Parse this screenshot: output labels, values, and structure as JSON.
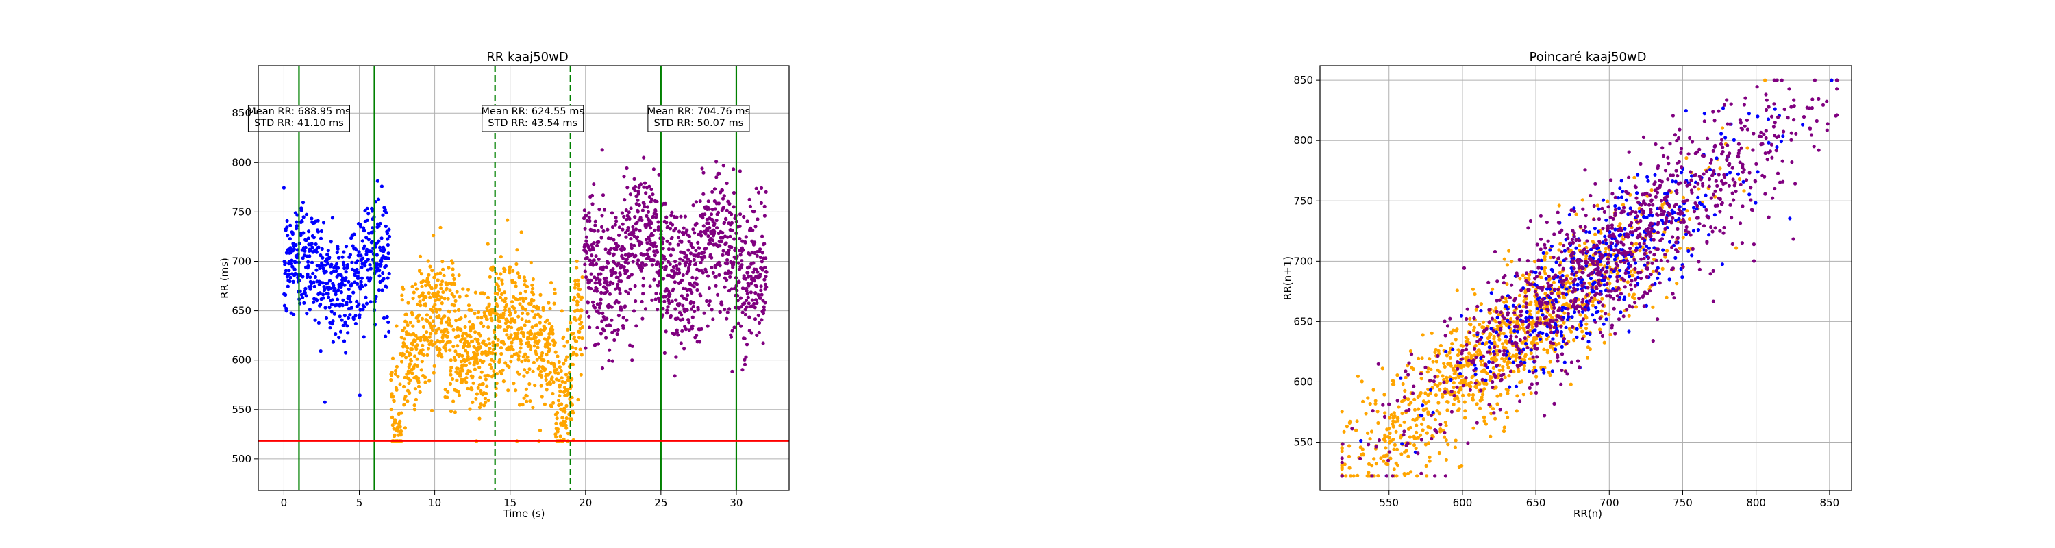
{
  "figure_titles": {
    "left": "RR kaaj50wD",
    "right": "Poincaré kaaj50wD"
  },
  "colors": {
    "segment1": "#0000ff",
    "segment2": "#ffa500",
    "segment3": "#800080",
    "boundary_lines": "#008000",
    "threshold_line": "#ff0000",
    "grid": "#b0b0b0"
  },
  "chart_data": [
    {
      "type": "scatter",
      "title": "RR kaaj50wD",
      "xlabel": "Time (s)",
      "ylabel": "RR (ms)",
      "xlim": [
        -1.7,
        33.5
      ],
      "ylim": [
        468,
        898
      ],
      "xticks": [
        0,
        5,
        10,
        15,
        20,
        25,
        30
      ],
      "yticks": [
        500,
        550,
        600,
        650,
        700,
        750,
        800,
        850
      ],
      "grid": true,
      "threshold_line": {
        "y": 518,
        "color": "#ff0000"
      },
      "vertical_lines": [
        {
          "x": 1.0,
          "style": "solid"
        },
        {
          "x": 6.0,
          "style": "solid"
        },
        {
          "x": 14.0,
          "style": "dashed"
        },
        {
          "x": 19.0,
          "style": "dashed"
        },
        {
          "x": 25.0,
          "style": "solid"
        },
        {
          "x": 30.0,
          "style": "solid"
        }
      ],
      "annotations": [
        {
          "x": 1.0,
          "y": 846,
          "lines": [
            "Mean RR: 688.95 ms",
            "STD RR: 41.10 ms"
          ]
        },
        {
          "x": 16.5,
          "y": 846,
          "lines": [
            "Mean RR: 624.55 ms",
            "STD RR: 43.54 ms"
          ]
        },
        {
          "x": 27.5,
          "y": 846,
          "lines": [
            "Mean RR: 704.76 ms",
            "STD RR: 50.07 ms"
          ]
        }
      ],
      "series": [
        {
          "color": "#0000ff",
          "x_range": [
            0.0,
            7.0
          ],
          "mean": 688.95,
          "std": 41.1,
          "n": 500
        },
        {
          "color": "#ffa500",
          "x_range": [
            7.1,
            19.8
          ],
          "mean": 624.55,
          "std": 43.54,
          "n": 1100
        },
        {
          "color": "#800080",
          "x_range": [
            19.9,
            32.0
          ],
          "mean": 704.76,
          "std": 50.07,
          "n": 1050
        }
      ]
    },
    {
      "type": "scatter",
      "title": "Poincaré kaaj50wD",
      "xlabel": "RR(n)",
      "ylabel": "RR(n+1)",
      "xlim": [
        503,
        865
      ],
      "ylim": [
        510,
        862
      ],
      "xticks": [
        550,
        600,
        650,
        700,
        750,
        800,
        850
      ],
      "yticks": [
        550,
        600,
        650,
        700,
        750,
        800,
        850
      ],
      "grid": true,
      "series": [
        {
          "color": "#ffa500",
          "center": [
            630,
            632
          ],
          "spread": 42,
          "n": 1100
        },
        {
          "color": "#0000ff",
          "center": [
            690,
            690
          ],
          "spread": 40,
          "n": 450
        },
        {
          "color": "#800080",
          "center": [
            705,
            706
          ],
          "spread": 48,
          "n": 1000
        }
      ]
    }
  ]
}
